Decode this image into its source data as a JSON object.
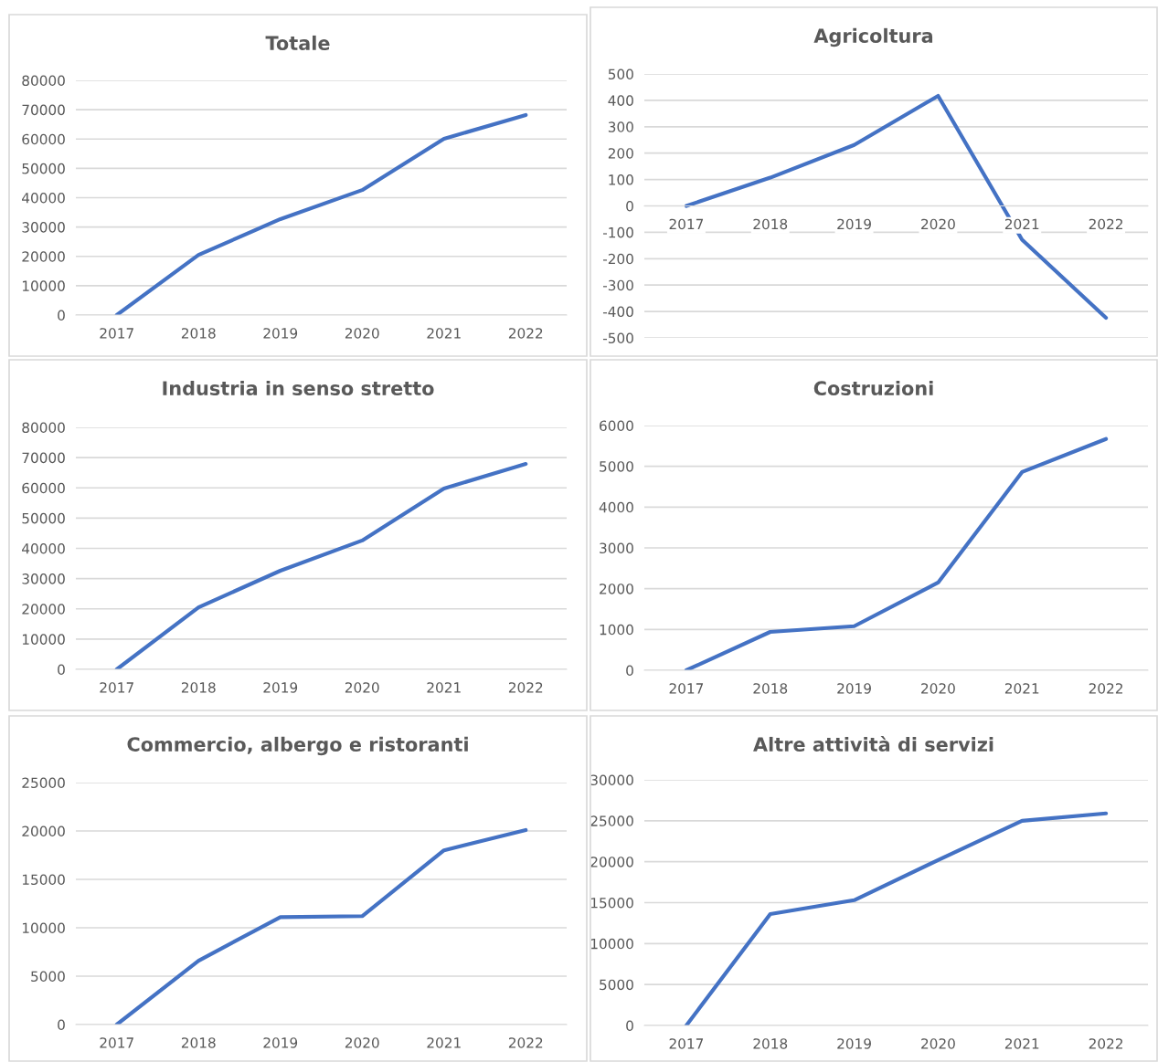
{
  "chart_data": [
    {
      "type": "line",
      "title": "Totale",
      "categories": [
        "2017",
        "2018",
        "2019",
        "2020",
        "2021",
        "2022"
      ],
      "series": [
        {
          "color": "#4472c4",
          "values": [
            0,
            20500,
            32700,
            42600,
            60100,
            68200
          ]
        }
      ],
      "ylim": [
        0,
        80000
      ],
      "yticks": [
        0,
        10000,
        20000,
        30000,
        40000,
        50000,
        60000,
        70000,
        80000
      ],
      "grid": "y",
      "marker": "none",
      "line_style": "solid"
    },
    {
      "type": "line",
      "title": "Agricoltura",
      "categories": [
        "2017",
        "2018",
        "2019",
        "2020",
        "2021",
        "2022"
      ],
      "series": [
        {
          "color": "#4472c4",
          "values": [
            0,
            107,
            231,
            417,
            -128,
            -424
          ]
        }
      ],
      "ylim": [
        -500,
        500
      ],
      "yticks": [
        -500,
        -400,
        -300,
        -200,
        -100,
        0,
        100,
        200,
        300,
        400,
        500
      ],
      "grid": "y",
      "marker": "none",
      "line_style": "solid"
    },
    {
      "type": "line",
      "title": "Industria in senso stretto",
      "categories": [
        "2017",
        "2018",
        "2019",
        "2020",
        "2021",
        "2022"
      ],
      "series": [
        {
          "color": "#4472c4",
          "values": [
            0,
            20500,
            32600,
            42600,
            59800,
            67900
          ]
        }
      ],
      "ylim": [
        0,
        80000
      ],
      "yticks": [
        0,
        10000,
        20000,
        30000,
        40000,
        50000,
        60000,
        70000,
        80000
      ],
      "grid": "y",
      "marker": "none",
      "line_style": "solid"
    },
    {
      "type": "line",
      "title": "Costruzioni",
      "categories": [
        "2017",
        "2018",
        "2019",
        "2020",
        "2021",
        "2022"
      ],
      "series": [
        {
          "color": "#4472c4",
          "values": [
            0,
            940,
            1080,
            2150,
            4860,
            5670
          ]
        }
      ],
      "ylim": [
        0,
        6000
      ],
      "yticks": [
        0,
        1000,
        2000,
        3000,
        4000,
        5000,
        6000
      ],
      "grid": "y",
      "marker": "none",
      "line_style": "solid"
    },
    {
      "type": "line",
      "title": "Commercio, albergo e ristoranti",
      "categories": [
        "2017",
        "2018",
        "2019",
        "2020",
        "2021",
        "2022"
      ],
      "series": [
        {
          "color": "#4472c4",
          "values": [
            0,
            6600,
            11100,
            11200,
            18000,
            20100
          ]
        }
      ],
      "ylim": [
        0,
        25000
      ],
      "yticks": [
        0,
        5000,
        10000,
        15000,
        20000,
        25000
      ],
      "grid": "y",
      "marker": "none",
      "line_style": "solid"
    },
    {
      "type": "line",
      "title": "Altre attività di servizi",
      "categories": [
        "2017",
        "2018",
        "2019",
        "2020",
        "2021",
        "2022"
      ],
      "series": [
        {
          "color": "#4472c4",
          "values": [
            0,
            13600,
            15300,
            20200,
            25000,
            25900
          ]
        }
      ],
      "ylim": [
        0,
        30000
      ],
      "yticks": [
        0,
        5000,
        10000,
        15000,
        20000,
        25000,
        30000
      ],
      "grid": "y",
      "marker": "none",
      "line_style": "solid"
    }
  ]
}
